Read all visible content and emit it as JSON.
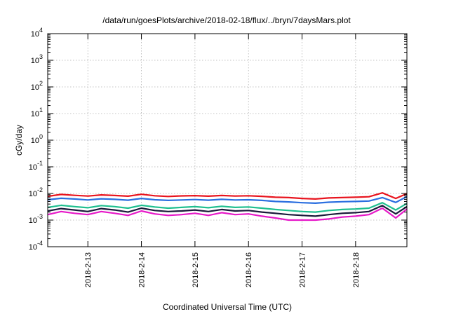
{
  "chart_data": {
    "type": "line",
    "title": "/data/run/goesPlots/archive/2018-02-18/flux/../bryn/7daysMars.plot",
    "xlabel": "Coordinated Universal Time (UTC)",
    "ylabel": "cGy/day",
    "y_scale": "log",
    "ylim": [
      0.0001,
      10000
    ],
    "xlim": [
      "2018-02-12 06:00",
      "2018-02-18 23:00"
    ],
    "grid": true,
    "y_ticks": [
      {
        "base": "10",
        "exp": "-4",
        "value": 0.0001
      },
      {
        "base": "10",
        "exp": "-3",
        "value": 0.001
      },
      {
        "base": "10",
        "exp": "-2",
        "value": 0.01
      },
      {
        "base": "10",
        "exp": "-1",
        "value": 0.1
      },
      {
        "base": "10",
        "exp": "0",
        "value": 1
      },
      {
        "base": "10",
        "exp": "1",
        "value": 10
      },
      {
        "base": "10",
        "exp": "2",
        "value": 100
      },
      {
        "base": "10",
        "exp": "3",
        "value": 1000
      },
      {
        "base": "10",
        "exp": "4",
        "value": 10000
      }
    ],
    "x_ticks": [
      {
        "label": "2018-2-13",
        "date": "2018-02-13 00:00"
      },
      {
        "label": "2018-2-14",
        "date": "2018-02-14 00:00"
      },
      {
        "label": "2018-2-15",
        "date": "2018-02-15 00:00"
      },
      {
        "label": "2018-2-16",
        "date": "2018-02-16 00:00"
      },
      {
        "label": "2018-2-17",
        "date": "2018-02-17 00:00"
      },
      {
        "label": "2018-2-18",
        "date": "2018-02-18 00:00"
      }
    ],
    "x": [
      "2018-02-12 06:00",
      "2018-02-12 12:00",
      "2018-02-12 18:00",
      "2018-02-13 00:00",
      "2018-02-13 06:00",
      "2018-02-13 12:00",
      "2018-02-13 18:00",
      "2018-02-14 00:00",
      "2018-02-14 06:00",
      "2018-02-14 12:00",
      "2018-02-14 18:00",
      "2018-02-15 00:00",
      "2018-02-15 06:00",
      "2018-02-15 12:00",
      "2018-02-15 18:00",
      "2018-02-16 00:00",
      "2018-02-16 06:00",
      "2018-02-16 12:00",
      "2018-02-16 18:00",
      "2018-02-17 00:00",
      "2018-02-17 06:00",
      "2018-02-17 12:00",
      "2018-02-17 18:00",
      "2018-02-18 00:00",
      "2018-02-18 06:00",
      "2018-02-18 12:00",
      "2018-02-18 18:00",
      "2018-02-18 23:00"
    ],
    "series": [
      {
        "color": "#e8141e",
        "values": [
          0.0078,
          0.0092,
          0.0085,
          0.008,
          0.0088,
          0.0084,
          0.0079,
          0.0093,
          0.0082,
          0.0077,
          0.0081,
          0.0083,
          0.0079,
          0.0084,
          0.008,
          0.0082,
          0.0078,
          0.0072,
          0.007,
          0.0065,
          0.0062,
          0.0068,
          0.007,
          0.0072,
          0.0075,
          0.0105,
          0.0065,
          0.0098
        ]
      },
      {
        "color": "#2b6fe0",
        "values": [
          0.0058,
          0.0066,
          0.0062,
          0.0057,
          0.0063,
          0.006,
          0.0056,
          0.0065,
          0.0058,
          0.0055,
          0.0057,
          0.0059,
          0.0056,
          0.006,
          0.0057,
          0.0058,
          0.0055,
          0.005,
          0.0048,
          0.0045,
          0.0043,
          0.0047,
          0.0049,
          0.005,
          0.0052,
          0.007,
          0.0046,
          0.0076
        ]
      },
      {
        "color": "#1fbf8f",
        "values": [
          0.003,
          0.0036,
          0.0032,
          0.0029,
          0.0035,
          0.0032,
          0.0028,
          0.0036,
          0.0031,
          0.0028,
          0.003,
          0.0032,
          0.0029,
          0.0033,
          0.003,
          0.0031,
          0.0028,
          0.0025,
          0.0023,
          0.0021,
          0.002,
          0.0023,
          0.0025,
          0.0026,
          0.0028,
          0.0045,
          0.0024,
          0.0042
        ]
      },
      {
        "color": "#1a1a3a",
        "values": [
          0.0022,
          0.0027,
          0.0024,
          0.0021,
          0.0027,
          0.0024,
          0.002,
          0.0028,
          0.0023,
          0.0021,
          0.0022,
          0.0024,
          0.0021,
          0.0025,
          0.0022,
          0.0023,
          0.002,
          0.0018,
          0.0016,
          0.0015,
          0.0014,
          0.0016,
          0.0018,
          0.0019,
          0.0021,
          0.0035,
          0.0017,
          0.0032
        ]
      },
      {
        "color": "#e619c8",
        "values": [
          0.0016,
          0.0021,
          0.0018,
          0.0016,
          0.0021,
          0.0018,
          0.0015,
          0.0022,
          0.0017,
          0.0015,
          0.0016,
          0.0018,
          0.0015,
          0.0019,
          0.0016,
          0.0017,
          0.0014,
          0.0012,
          0.001,
          0.001,
          0.001,
          0.0011,
          0.0013,
          0.0014,
          0.0016,
          0.0028,
          0.0012,
          0.0026
        ]
      }
    ]
  }
}
